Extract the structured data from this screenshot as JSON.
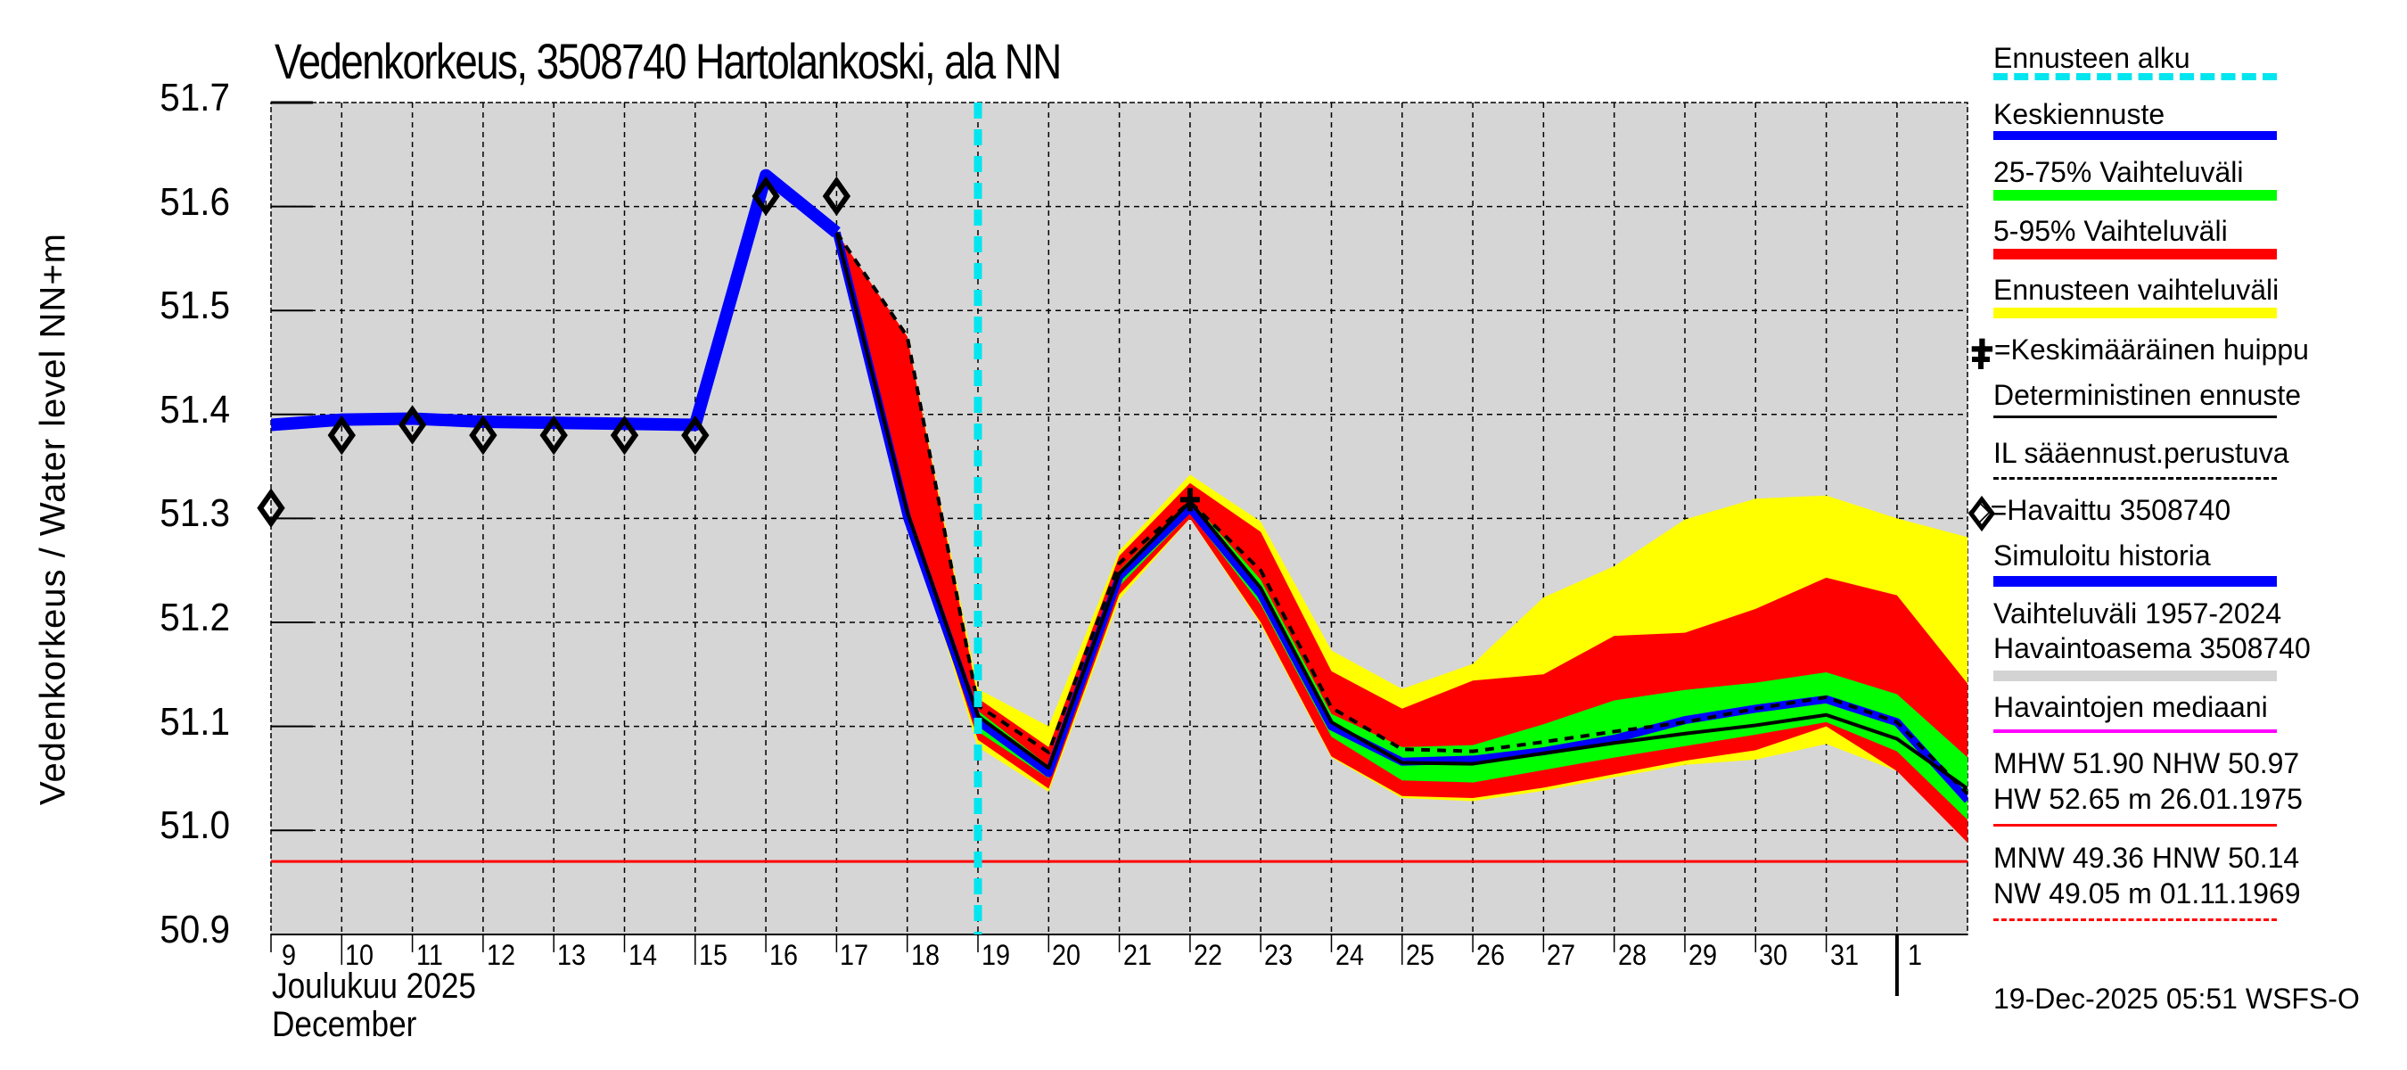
{
  "title": "Vedenkorkeus, 3508740 Hartolankoski, ala NN",
  "y_axis_label": "Vedenkorkeus / Water level    NN+m",
  "y_ticks": [
    "51.7",
    "51.6",
    "51.5",
    "51.4",
    "51.3",
    "51.2",
    "51.1",
    "51.0",
    "50.9"
  ],
  "x_ticks": [
    "9",
    "10",
    "11",
    "12",
    "13",
    "14",
    "15",
    "16",
    "17",
    "18",
    "19",
    "20",
    "21",
    "22",
    "23",
    "24",
    "25",
    "26",
    "27",
    "28",
    "29",
    "30",
    "31",
    "1"
  ],
  "month_label_fi": "Joulukuu  2025",
  "month_label_en": "December",
  "timestamp": "19-Dec-2025 05:51 WSFS-O",
  "legend": {
    "forecast_start": "Ennusteen alku",
    "median_forecast": "Keskiennuste",
    "range_25_75": "25-75% Vaihteluväli",
    "range_5_95": "5-95% Vaihteluväli",
    "forecast_range": "Ennusteen vaihteluväli",
    "mean_peak": "✚=Keskimääräinen huippu",
    "deterministic": "Deterministinen ennuste",
    "il_weather": "IL sääennust.perustuva",
    "observed": "◇=Havaittu 3508740",
    "simulated_history": "Simuloitu historia",
    "hist_range_1": "Vaihteluväli 1957-2024",
    "hist_range_2": "Havaintoasema 3508740",
    "obs_median": "Havaintojen mediaani",
    "mhw_line": "MHW  51.90 NHW  50.97",
    "hw_line": "HW  52.65 m 26.01.1975",
    "mnw_line": "MNW  49.36 HNW  50.14",
    "nw_line": "NW  49.05 m 01.11.1969"
  },
  "colors": {
    "plot_bg": "#d6d6d6",
    "forecast_start": "#00e5ee",
    "median": "#0000ff",
    "range_25_75": "#00ff00",
    "range_5_95": "#ff0000",
    "forecast_range": "#ffff00",
    "deterministic": "#000000",
    "simulated": "#0000ff",
    "hist_range": "#d3d3d3",
    "obs_median": "#ff00ff",
    "nhw_line": "#ff0000"
  },
  "chart_data": {
    "type": "line",
    "title": "Vedenkorkeus, 3508740 Hartolankoski, ala NN",
    "xlabel": "Joulukuu 2025 / December",
    "ylabel": "Vedenkorkeus / Water level NN+m",
    "ylim": [
      50.9,
      51.7
    ],
    "xlim": [
      "2025-12-09",
      "2026-01-02"
    ],
    "grid": true,
    "legend_position": "right",
    "forecast_start": "2025-12-19",
    "reference_lines": {
      "NHW": 50.97
    },
    "observed": {
      "x": [
        "12-09",
        "12-10",
        "12-11",
        "12-12",
        "12-13",
        "12-14",
        "12-15",
        "12-16",
        "12-17"
      ],
      "values": [
        51.31,
        51.38,
        51.39,
        51.38,
        51.38,
        51.38,
        51.38,
        51.61,
        51.61
      ]
    },
    "simulated_history": {
      "x": [
        "12-09",
        "12-10",
        "12-11",
        "12-12",
        "12-13",
        "12-14",
        "12-15",
        "12-16",
        "12-17"
      ],
      "values": [
        51.39,
        51.395,
        51.396,
        51.393,
        51.392,
        51.391,
        51.39,
        51.63,
        51.575
      ]
    },
    "forecast": {
      "x": [
        "12-17",
        "12-18",
        "12-19",
        "12-20",
        "12-21",
        "12-22",
        "12-23",
        "12-24",
        "12-25",
        "12-26",
        "12-27",
        "12-28",
        "12-29",
        "12-30",
        "12-31",
        "01-01",
        "01-02"
      ],
      "median": [
        51.575,
        51.3,
        51.105,
        51.055,
        51.244,
        51.31,
        51.227,
        51.1,
        51.066,
        51.068,
        51.076,
        51.088,
        51.106,
        51.117,
        51.126,
        51.104,
        51.029
      ],
      "deterministic": [
        51.575,
        51.306,
        51.11,
        51.06,
        51.247,
        51.316,
        51.233,
        51.104,
        51.065,
        51.064,
        51.074,
        51.084,
        51.093,
        51.101,
        51.111,
        51.088,
        51.04
      ],
      "il_weather_based": [
        51.575,
        51.475,
        51.12,
        51.075,
        51.257,
        51.316,
        51.25,
        51.118,
        51.078,
        51.076,
        51.085,
        51.095,
        51.104,
        51.117,
        51.128,
        51.104,
        51.035
      ],
      "p25": [
        51.575,
        51.3,
        51.095,
        51.05,
        51.235,
        51.305,
        51.217,
        51.09,
        51.048,
        51.046,
        51.058,
        51.07,
        51.081,
        51.092,
        51.104,
        51.076,
        51.01
      ],
      "p75": [
        51.575,
        51.3,
        51.115,
        51.062,
        51.25,
        51.318,
        51.241,
        51.112,
        51.08,
        51.082,
        51.102,
        51.125,
        51.135,
        51.142,
        51.152,
        51.131,
        51.07
      ],
      "p5": [
        51.575,
        51.3,
        51.087,
        51.04,
        51.227,
        51.3,
        51.2,
        51.071,
        51.033,
        51.031,
        51.041,
        51.054,
        51.067,
        51.077,
        51.1,
        51.057,
        50.988
      ],
      "p95": [
        51.575,
        51.475,
        51.127,
        51.08,
        51.264,
        51.334,
        51.287,
        51.153,
        51.117,
        51.144,
        51.15,
        51.187,
        51.19,
        51.213,
        51.243,
        51.226,
        51.141
      ],
      "min": [
        51.575,
        51.3,
        51.08,
        51.037,
        51.222,
        51.3,
        51.198,
        51.07,
        51.031,
        51.028,
        51.038,
        51.051,
        51.063,
        51.068,
        51.083,
        51.057,
        50.988
      ],
      "max": [
        51.575,
        51.475,
        51.136,
        51.1,
        51.269,
        51.342,
        51.297,
        51.173,
        51.136,
        51.16,
        51.224,
        51.254,
        51.299,
        51.319,
        51.322,
        51.3,
        51.282
      ]
    },
    "mean_peak": {
      "x": "12-22",
      "value": 51.318
    },
    "stats": {
      "MHW": 51.9,
      "NHW": 50.97,
      "HW": 52.65,
      "HW_date": "26.01.1975",
      "MNW": 49.36,
      "HNW": 50.14,
      "NW": 49.05,
      "NW_date": "01.11.1969"
    }
  }
}
